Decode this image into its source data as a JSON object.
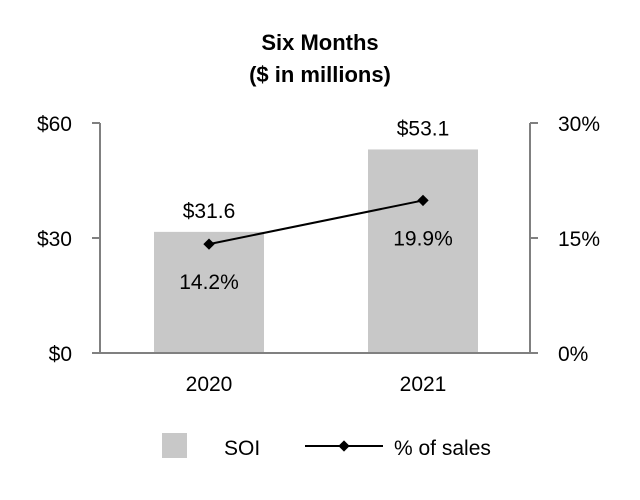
{
  "chart_data": {
    "type": "bar",
    "title": "Six Months",
    "subtitle": "($ in millions)",
    "categories": [
      "2020",
      "2021"
    ],
    "series": [
      {
        "name": "SOI",
        "kind": "bar",
        "axis": "left",
        "values": [
          31.6,
          53.1
        ],
        "labels": [
          "$31.6",
          "$53.1"
        ],
        "color": "#c8c8c8"
      },
      {
        "name": "% of sales",
        "kind": "line",
        "axis": "right",
        "values": [
          14.2,
          19.9
        ],
        "labels": [
          "14.2%",
          "19.9%"
        ],
        "color": "#000000"
      }
    ],
    "left_axis": {
      "ylim": [
        0,
        60
      ],
      "ticks": [
        0,
        30,
        60
      ],
      "tick_labels": [
        "$0",
        "$30",
        "$60"
      ]
    },
    "right_axis": {
      "ylim": [
        0,
        30
      ],
      "ticks": [
        0,
        15,
        30
      ],
      "tick_labels": [
        "0%",
        "15%",
        "30%"
      ]
    },
    "grid": false,
    "legend_position": "bottom",
    "axis_color": "#808080"
  }
}
